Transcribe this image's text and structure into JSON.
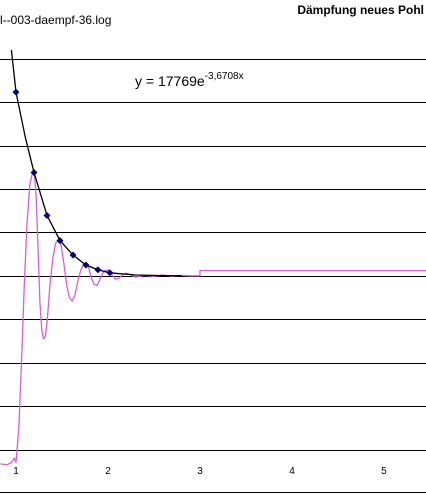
{
  "chart_data": {
    "type": "line",
    "title": "Dämpfung neues Pohl",
    "subtitle": "l--003-daempf-36.log",
    "equation": {
      "base": "y = 17769e",
      "exponent": "-3,6708x"
    },
    "xlim": [
      0.826,
      5.457
    ],
    "ylim": [
      -500,
      635
    ],
    "xticks": [
      1,
      2,
      3,
      4,
      5
    ],
    "gridlines": [
      -400,
      -300,
      -200,
      -100,
      0,
      100,
      200,
      300,
      400,
      500
    ],
    "series": [
      {
        "kind": "line",
        "color": "#d65fd6",
        "x": [
          0.83,
          0.9,
          0.95,
          0.98,
          1.0,
          1.03,
          1.06,
          1.09,
          1.12,
          1.15,
          1.18,
          1.2,
          1.22,
          1.24,
          1.26,
          1.28,
          1.3,
          1.32,
          1.34,
          1.37,
          1.4,
          1.43,
          1.46,
          1.49,
          1.52,
          1.55,
          1.58,
          1.61,
          1.64,
          1.67,
          1.7,
          1.73,
          1.76,
          1.79,
          1.82,
          1.85,
          1.88,
          1.91,
          1.94,
          1.97,
          2.0,
          2.04,
          2.08,
          2.12,
          2.16,
          2.2,
          2.25,
          2.3,
          2.4,
          2.5,
          2.6,
          2.7,
          2.8,
          2.9,
          3.0,
          3.0,
          5.457
        ],
        "values": [
          -433,
          -435,
          -430,
          -420,
          -430,
          -350,
          -200,
          -20,
          120,
          210,
          238,
          235,
          180,
          60,
          -60,
          -125,
          -145,
          -140,
          -100,
          -20,
          40,
          75,
          81,
          70,
          30,
          -20,
          -50,
          -58,
          -45,
          -15,
          10,
          25,
          28,
          18,
          -5,
          -20,
          -22,
          -10,
          5,
          12,
          13,
          3,
          -8,
          -6,
          3,
          6,
          2,
          -3,
          1,
          -1,
          2,
          -1,
          1,
          0,
          0,
          12,
          12
        ]
      },
      {
        "kind": "line",
        "color": "#000000",
        "x": [
          0.95,
          1.0,
          1.1,
          1.196,
          1.337,
          1.478,
          1.62,
          1.76,
          1.89,
          2.02,
          2.3,
          2.6,
          2.8
        ],
        "values": [
          520,
          423,
          320,
          238,
          139,
          81,
          48,
          25,
          14,
          7,
          2,
          0.5,
          0
        ]
      },
      {
        "kind": "markers",
        "color": "#000080",
        "x": [
          1.0,
          1.196,
          1.337,
          1.478,
          1.62,
          1.76,
          1.89,
          2.02
        ],
        "values": [
          423,
          238,
          139,
          81,
          48,
          25,
          14,
          7
        ]
      }
    ]
  }
}
